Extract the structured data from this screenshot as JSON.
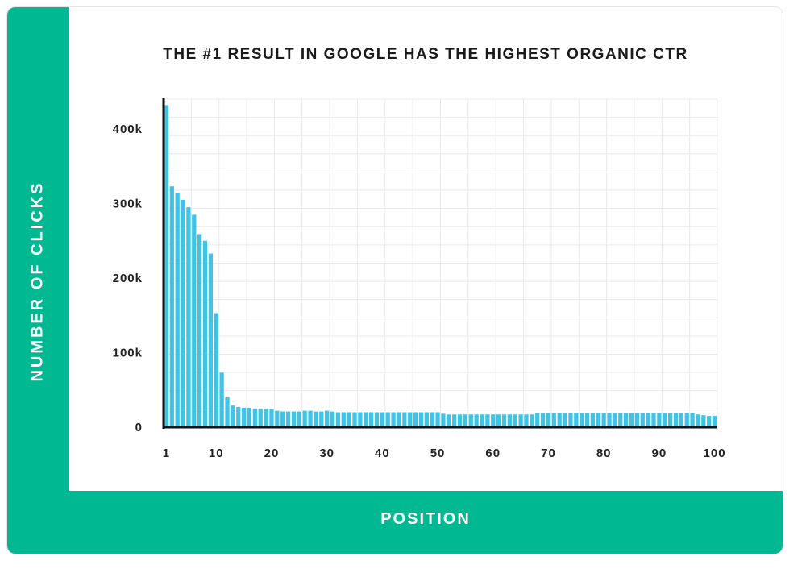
{
  "chart_data": {
    "type": "bar",
    "title": "THE #1 RESULT IN GOOGLE HAS THE HIGHEST ORGANIC CTR",
    "xlabel": "POSITION",
    "ylabel": "NUMBER OF CLICKS",
    "ylim": [
      0,
      440000
    ],
    "xlim": [
      1,
      100
    ],
    "grid": true,
    "bar_color": "#3fc3e6",
    "accent_color": "#00b891",
    "y_ticks": [
      {
        "value": 0,
        "label": "0"
      },
      {
        "value": 100000,
        "label": "100k"
      },
      {
        "value": 200000,
        "label": "200k"
      },
      {
        "value": 300000,
        "label": "300k"
      },
      {
        "value": 400000,
        "label": "400k"
      }
    ],
    "x_ticks": [
      {
        "value": 1,
        "label": "1"
      },
      {
        "value": 10,
        "label": "10"
      },
      {
        "value": 20,
        "label": "20"
      },
      {
        "value": 30,
        "label": "30"
      },
      {
        "value": 40,
        "label": "40"
      },
      {
        "value": 50,
        "label": "50"
      },
      {
        "value": 60,
        "label": "60"
      },
      {
        "value": 70,
        "label": "70"
      },
      {
        "value": 80,
        "label": "80"
      },
      {
        "value": 90,
        "label": "90"
      },
      {
        "value": 100,
        "label": "100"
      }
    ],
    "x": [
      1,
      2,
      3,
      4,
      5,
      6,
      7,
      8,
      9,
      10,
      11,
      12,
      13,
      14,
      15,
      16,
      17,
      18,
      19,
      20,
      21,
      22,
      23,
      24,
      25,
      26,
      27,
      28,
      29,
      30,
      31,
      32,
      33,
      34,
      35,
      36,
      37,
      38,
      39,
      40,
      41,
      42,
      43,
      44,
      45,
      46,
      47,
      48,
      49,
      50,
      51,
      52,
      53,
      54,
      55,
      56,
      57,
      58,
      59,
      60,
      61,
      62,
      63,
      64,
      65,
      66,
      67,
      68,
      69,
      70,
      71,
      72,
      73,
      74,
      75,
      76,
      77,
      78,
      79,
      80,
      81,
      82,
      83,
      84,
      85,
      86,
      87,
      88,
      89,
      90,
      91,
      92,
      93,
      94,
      95,
      96,
      97,
      98,
      99,
      100
    ],
    "values": [
      432000,
      323000,
      314000,
      305000,
      295000,
      285000,
      259000,
      250000,
      233000,
      153000,
      73000,
      40000,
      29000,
      27000,
      26000,
      26000,
      25000,
      25000,
      25000,
      24000,
      22000,
      21000,
      21000,
      21000,
      21000,
      22000,
      22000,
      21000,
      21000,
      22000,
      21000,
      20000,
      20000,
      20000,
      20000,
      20000,
      20000,
      20000,
      20000,
      20000,
      20000,
      20000,
      20000,
      20000,
      20000,
      20000,
      20000,
      20000,
      20000,
      20000,
      18000,
      17000,
      17000,
      17000,
      17000,
      17000,
      17000,
      17000,
      17000,
      17000,
      17000,
      17000,
      17000,
      17000,
      17000,
      17000,
      17000,
      19000,
      19000,
      19000,
      19000,
      19000,
      19000,
      19000,
      19000,
      19000,
      19000,
      19000,
      19000,
      19000,
      19000,
      19000,
      19000,
      19000,
      19000,
      19000,
      19000,
      19000,
      19000,
      19000,
      19000,
      19000,
      19000,
      19000,
      19000,
      19000,
      17000,
      16000,
      15000,
      15000
    ]
  }
}
